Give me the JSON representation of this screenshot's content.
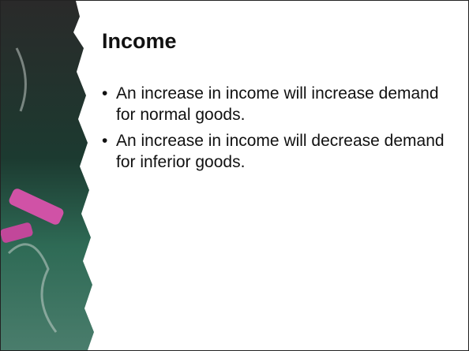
{
  "slide": {
    "title": "Income",
    "bullets": [
      "An increase in income will increase demand for normal goods.",
      "An increase in income will decrease demand for inferior goods."
    ]
  }
}
